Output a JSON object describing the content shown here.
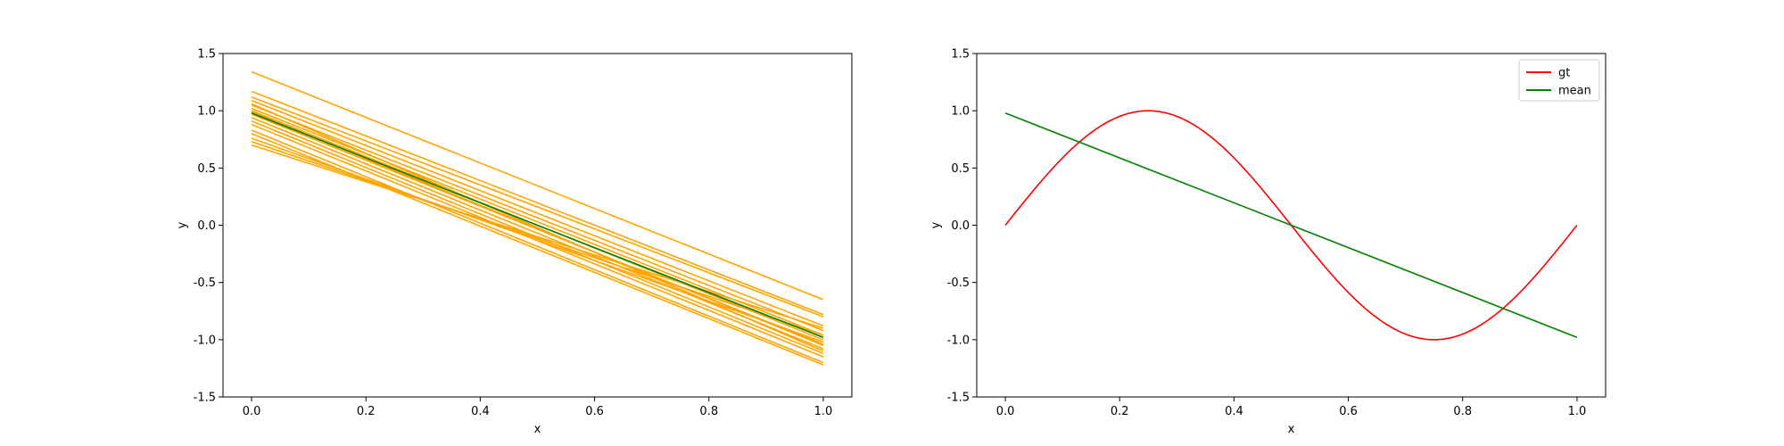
{
  "chart_data": [
    {
      "type": "line",
      "xlabel": "x",
      "ylabel": "y",
      "xlim": [
        -0.05,
        1.05
      ],
      "ylim": [
        -1.5,
        1.5
      ],
      "xticks": [
        "0.0",
        "0.2",
        "0.4",
        "0.6",
        "0.8",
        "1.0"
      ],
      "yticks": [
        "-1.5",
        "-1.0",
        "-0.5",
        "0.0",
        "0.5",
        "1.0",
        "1.5"
      ],
      "grid": false,
      "sample_color": "#ffa500",
      "mean_color": "#008000",
      "samples": [
        {
          "x": [
            0,
            1
          ],
          "y": [
            1.34,
            -0.65
          ]
        },
        {
          "x": [
            0,
            1
          ],
          "y": [
            1.17,
            -0.78
          ]
        },
        {
          "x": [
            0,
            1
          ],
          "y": [
            1.12,
            -0.8
          ]
        },
        {
          "x": [
            0,
            1
          ],
          "y": [
            1.09,
            -0.88
          ]
        },
        {
          "x": [
            0,
            1
          ],
          "y": [
            1.05,
            -0.92
          ]
        },
        {
          "x": [
            0,
            1
          ],
          "y": [
            1.02,
            -0.96
          ]
        },
        {
          "x": [
            0,
            1
          ],
          "y": [
            1.0,
            -1.0
          ]
        },
        {
          "x": [
            0,
            1
          ],
          "y": [
            0.97,
            -1.04
          ]
        },
        {
          "x": [
            0,
            1
          ],
          "y": [
            0.94,
            -1.08
          ]
        },
        {
          "x": [
            0,
            1
          ],
          "y": [
            0.91,
            -1.12
          ]
        },
        {
          "x": [
            0,
            1
          ],
          "y": [
            0.88,
            -1.15
          ]
        },
        {
          "x": [
            0,
            1
          ],
          "y": [
            0.83,
            -1.2
          ]
        },
        {
          "x": [
            0,
            1
          ],
          "y": [
            0.8,
            -1.22
          ]
        },
        {
          "x": [
            0,
            1
          ],
          "y": [
            0.76,
            -1.02
          ]
        },
        {
          "x": [
            0,
            1
          ],
          "y": [
            0.73,
            -0.96
          ]
        },
        {
          "x": [
            0,
            1
          ],
          "y": [
            0.7,
            -0.9
          ]
        },
        {
          "x": [
            0,
            1
          ],
          "y": [
            0.99,
            -1.05
          ]
        },
        {
          "x": [
            0,
            1
          ],
          "y": [
            1.06,
            -1.1
          ]
        }
      ],
      "mean": {
        "x": [
          0,
          1
        ],
        "y": [
          0.98,
          -0.98
        ]
      }
    },
    {
      "type": "line",
      "xlabel": "x",
      "ylabel": "y",
      "xlim": [
        -0.05,
        1.05
      ],
      "ylim": [
        -1.5,
        1.5
      ],
      "xticks": [
        "0.0",
        "0.2",
        "0.4",
        "0.6",
        "0.8",
        "1.0"
      ],
      "yticks": [
        "-1.5",
        "-1.0",
        "-0.5",
        "0.0",
        "0.5",
        "1.0",
        "1.5"
      ],
      "grid": false,
      "legend": {
        "placement": "top-right",
        "entries": [
          {
            "label": "gt",
            "color": "#ff0000"
          },
          {
            "label": "mean",
            "color": "#008000"
          }
        ]
      },
      "series": [
        {
          "name": "gt",
          "color": "#ff0000",
          "function": "sin(2*pi*x)",
          "x_range": [
            0,
            1
          ]
        },
        {
          "name": "mean",
          "color": "#008000",
          "x": [
            0,
            1
          ],
          "y": [
            0.98,
            -0.98
          ]
        }
      ]
    }
  ]
}
